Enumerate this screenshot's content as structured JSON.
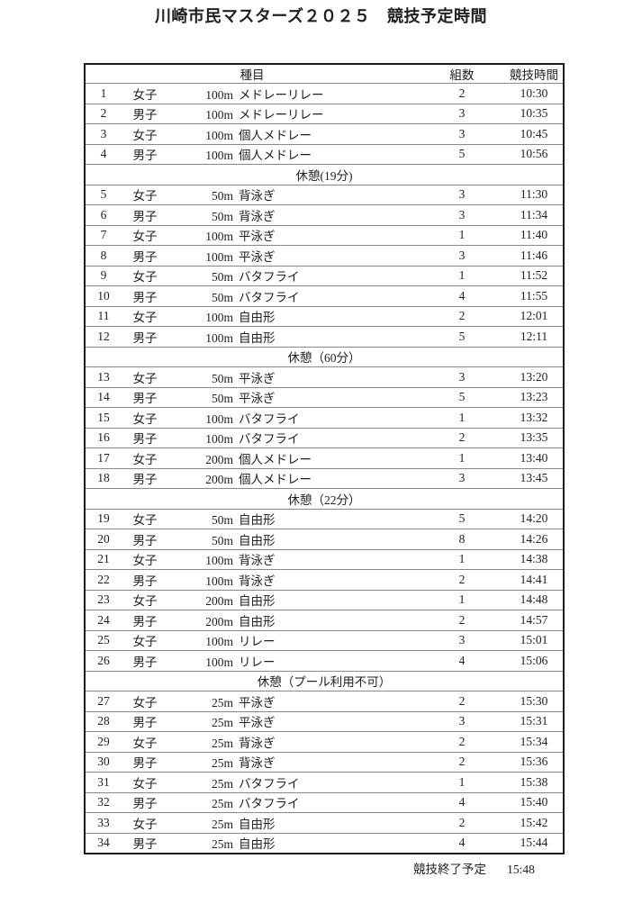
{
  "title": "川崎市民マスターズ２０２５　競技予定時間",
  "colors": {
    "page_background": "#ffffff",
    "text": "#212121",
    "outer_border": "#1c1c1c",
    "inner_border": "#8a8a8a"
  },
  "table": {
    "headers": {
      "event": "種目",
      "heats": "組数",
      "time": "競技時間"
    },
    "rows": [
      {
        "type": "event",
        "no": "1",
        "gender": "女子",
        "distance": "100m",
        "stroke": "メドレーリレー",
        "heats": "2",
        "time": "10:30"
      },
      {
        "type": "event",
        "no": "2",
        "gender": "男子",
        "distance": "100m",
        "stroke": "メドレーリレー",
        "heats": "3",
        "time": "10:35"
      },
      {
        "type": "event",
        "no": "3",
        "gender": "女子",
        "distance": "100m",
        "stroke": "個人メドレー",
        "heats": "3",
        "time": "10:45"
      },
      {
        "type": "event",
        "no": "4",
        "gender": "男子",
        "distance": "100m",
        "stroke": "個人メドレー",
        "heats": "5",
        "time": "10:56"
      },
      {
        "type": "break",
        "label": "休憩(19分)"
      },
      {
        "type": "event",
        "no": "5",
        "gender": "女子",
        "distance": "50m",
        "stroke": "背泳ぎ",
        "heats": "3",
        "time": "11:30"
      },
      {
        "type": "event",
        "no": "6",
        "gender": "男子",
        "distance": "50m",
        "stroke": "背泳ぎ",
        "heats": "3",
        "time": "11:34"
      },
      {
        "type": "event",
        "no": "7",
        "gender": "女子",
        "distance": "100m",
        "stroke": "平泳ぎ",
        "heats": "1",
        "time": "11:40"
      },
      {
        "type": "event",
        "no": "8",
        "gender": "男子",
        "distance": "100m",
        "stroke": "平泳ぎ",
        "heats": "3",
        "time": "11:46"
      },
      {
        "type": "event",
        "no": "9",
        "gender": "女子",
        "distance": "50m",
        "stroke": "バタフライ",
        "heats": "1",
        "time": "11:52"
      },
      {
        "type": "event",
        "no": "10",
        "gender": "男子",
        "distance": "50m",
        "stroke": "バタフライ",
        "heats": "4",
        "time": "11:55"
      },
      {
        "type": "event",
        "no": "11",
        "gender": "女子",
        "distance": "100m",
        "stroke": "自由形",
        "heats": "2",
        "time": "12:01"
      },
      {
        "type": "event",
        "no": "12",
        "gender": "男子",
        "distance": "100m",
        "stroke": "自由形",
        "heats": "5",
        "time": "12:11"
      },
      {
        "type": "break",
        "label": "休憩（60分）"
      },
      {
        "type": "event",
        "no": "13",
        "gender": "女子",
        "distance": "50m",
        "stroke": "平泳ぎ",
        "heats": "3",
        "time": "13:20"
      },
      {
        "type": "event",
        "no": "14",
        "gender": "男子",
        "distance": "50m",
        "stroke": "平泳ぎ",
        "heats": "5",
        "time": "13:23"
      },
      {
        "type": "event",
        "no": "15",
        "gender": "女子",
        "distance": "100m",
        "stroke": "バタフライ",
        "heats": "1",
        "time": "13:32"
      },
      {
        "type": "event",
        "no": "16",
        "gender": "男子",
        "distance": "100m",
        "stroke": "バタフライ",
        "heats": "2",
        "time": "13:35"
      },
      {
        "type": "event",
        "no": "17",
        "gender": "女子",
        "distance": "200m",
        "stroke": "個人メドレー",
        "heats": "1",
        "time": "13:40"
      },
      {
        "type": "event",
        "no": "18",
        "gender": "男子",
        "distance": "200m",
        "stroke": "個人メドレー",
        "heats": "3",
        "time": "13:45"
      },
      {
        "type": "break",
        "label": "休憩（22分）"
      },
      {
        "type": "event",
        "no": "19",
        "gender": "女子",
        "distance": "50m",
        "stroke": "自由形",
        "heats": "5",
        "time": "14:20"
      },
      {
        "type": "event",
        "no": "20",
        "gender": "男子",
        "distance": "50m",
        "stroke": "自由形",
        "heats": "8",
        "time": "14:26"
      },
      {
        "type": "event",
        "no": "21",
        "gender": "女子",
        "distance": "100m",
        "stroke": "背泳ぎ",
        "heats": "1",
        "time": "14:38"
      },
      {
        "type": "event",
        "no": "22",
        "gender": "男子",
        "distance": "100m",
        "stroke": "背泳ぎ",
        "heats": "2",
        "time": "14:41"
      },
      {
        "type": "event",
        "no": "23",
        "gender": "女子",
        "distance": "200m",
        "stroke": "自由形",
        "heats": "1",
        "time": "14:48"
      },
      {
        "type": "event",
        "no": "24",
        "gender": "男子",
        "distance": "200m",
        "stroke": "自由形",
        "heats": "2",
        "time": "14:57"
      },
      {
        "type": "event",
        "no": "25",
        "gender": "女子",
        "distance": "100m",
        "stroke": "リレー",
        "heats": "3",
        "time": "15:01"
      },
      {
        "type": "event",
        "no": "26",
        "gender": "男子",
        "distance": "100m",
        "stroke": "リレー",
        "heats": "4",
        "time": "15:06"
      },
      {
        "type": "break",
        "label": "休憩（プール利用不可）"
      },
      {
        "type": "event",
        "no": "27",
        "gender": "女子",
        "distance": "25m",
        "stroke": "平泳ぎ",
        "heats": "2",
        "time": "15:30"
      },
      {
        "type": "event",
        "no": "28",
        "gender": "男子",
        "distance": "25m",
        "stroke": "平泳ぎ",
        "heats": "3",
        "time": "15:31"
      },
      {
        "type": "event",
        "no": "29",
        "gender": "女子",
        "distance": "25m",
        "stroke": "背泳ぎ",
        "heats": "2",
        "time": "15:34"
      },
      {
        "type": "event",
        "no": "30",
        "gender": "男子",
        "distance": "25m",
        "stroke": "背泳ぎ",
        "heats": "2",
        "time": "15:36"
      },
      {
        "type": "event",
        "no": "31",
        "gender": "女子",
        "distance": "25m",
        "stroke": "バタフライ",
        "heats": "1",
        "time": "15:38"
      },
      {
        "type": "event",
        "no": "32",
        "gender": "男子",
        "distance": "25m",
        "stroke": "バタフライ",
        "heats": "4",
        "time": "15:40"
      },
      {
        "type": "event",
        "no": "33",
        "gender": "女子",
        "distance": "25m",
        "stroke": "自由形",
        "heats": "2",
        "time": "15:42"
      },
      {
        "type": "event",
        "no": "34",
        "gender": "男子",
        "distance": "25m",
        "stroke": "自由形",
        "heats": "4",
        "time": "15:44"
      }
    ]
  },
  "footer": {
    "label": "競技終了予定",
    "time": "15:48"
  }
}
